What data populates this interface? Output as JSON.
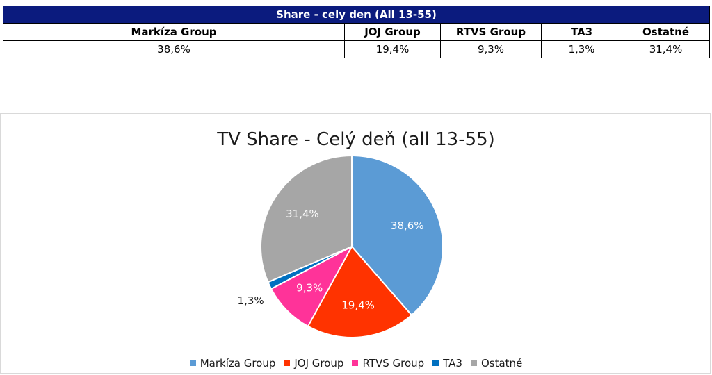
{
  "table": {
    "title": "Share - cely den (All 13-55)",
    "headers": [
      "Markíza Group",
      "JOJ Group",
      "RTVS Group",
      "TA3",
      "Ostatné"
    ],
    "values": [
      "38,6%",
      "19,4%",
      "9,3%",
      "1,3%",
      "31,4%"
    ]
  },
  "chart_data": {
    "type": "pie",
    "title": "TV Share - Celý deň (all 13-55)",
    "categories": [
      "Markíza Group",
      "JOJ Group",
      "RTVS Group",
      "TA3",
      "Ostatné"
    ],
    "values": [
      38.6,
      19.4,
      9.3,
      1.3,
      31.4
    ],
    "data_labels": [
      "38,6%",
      "19,4%",
      "9,3%",
      "1,3%",
      "31,4%"
    ],
    "colors": [
      "#5b9bd5",
      "#ff3300",
      "#ff3399",
      "#0070c0",
      "#a6a6a6"
    ],
    "legend_position": "bottom"
  }
}
